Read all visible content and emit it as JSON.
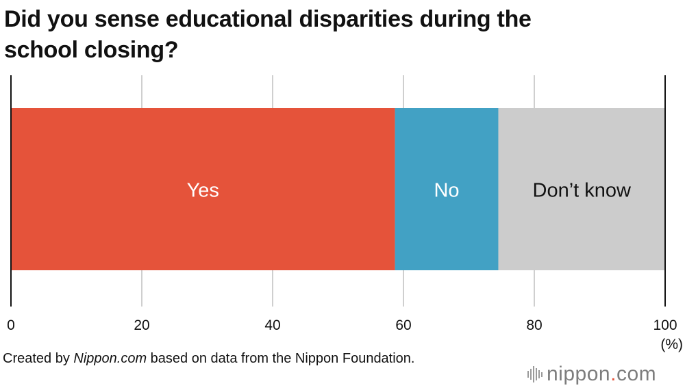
{
  "title": "Did you sense educational disparities during the school closing?",
  "footer": {
    "prefix": "Created by ",
    "source_name": "Nippon.com",
    "suffix": " based on data from the Nippon Foundation."
  },
  "logo": {
    "text_main": "nippon",
    "text_dot": ".",
    "text_end": "com",
    "icon": "sound-bars-icon"
  },
  "chart_data": {
    "type": "bar",
    "orientation": "horizontal-stacked",
    "xlim": [
      0,
      100
    ],
    "ticks": [
      "0",
      "20",
      "40",
      "60",
      "80",
      "100"
    ],
    "unit_label": "(%)",
    "grid": true,
    "series": [
      {
        "name": "Yes",
        "value": 58.7,
        "color": "#e5533a",
        "label_color": "#ffffff"
      },
      {
        "name": "No",
        "value": 15.8,
        "color": "#42a1c4",
        "label_color": "#ffffff"
      },
      {
        "name": "Don’t know",
        "value": 25.5,
        "color": "#cccccc",
        "label_color": "#111111"
      }
    ]
  }
}
